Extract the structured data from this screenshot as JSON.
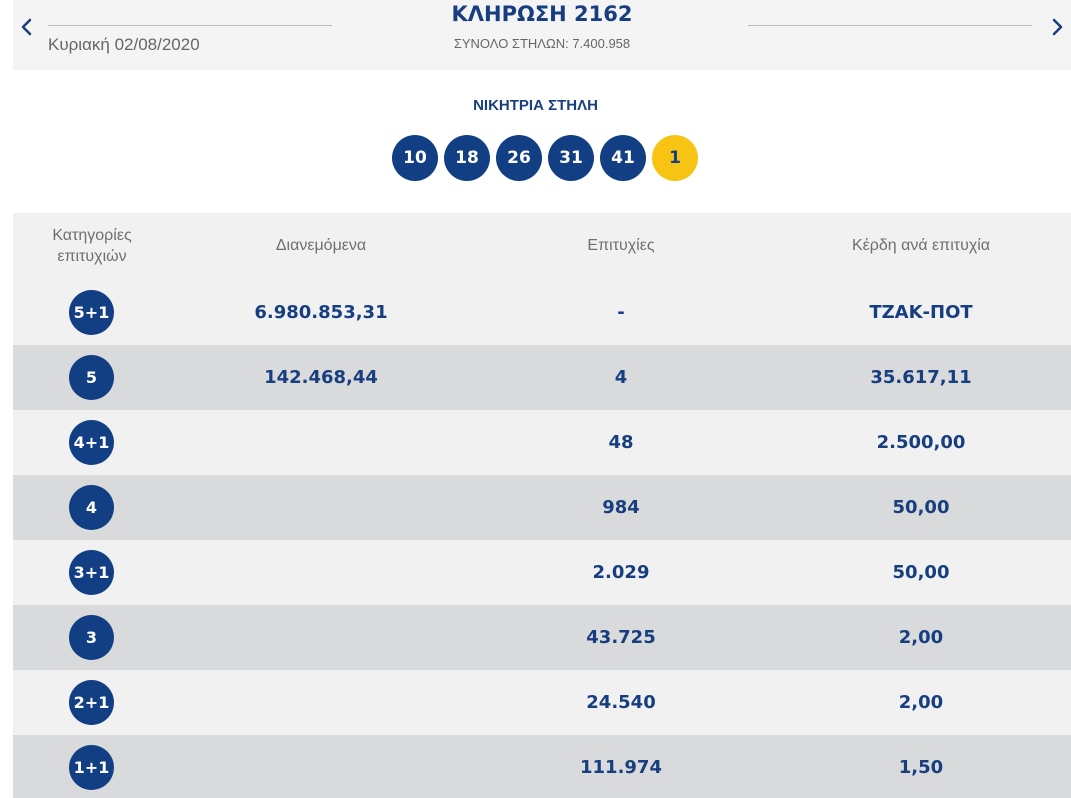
{
  "header": {
    "date": "Κυριακή 02/08/2020",
    "title": "ΚΛΗΡΩΣΗ 2162",
    "total": "ΣΥΝΟΛΟ ΣΤΗΛΩΝ: 7.400.958"
  },
  "winning": {
    "label": "ΝΙΚΗΤΡΙΑ ΣΤΗΛΗ",
    "numbers": [
      "10",
      "18",
      "26",
      "31",
      "41"
    ],
    "joker": "1"
  },
  "table": {
    "headers": {
      "category_line1": "Κατηγορίες",
      "category_line2": "επιτυχιών",
      "distributed": "Διανεμόμενα",
      "winners": "Επιτυχίες",
      "prize": "Κέρδη ανά επιτυχία"
    },
    "rows": [
      {
        "category": "5+1",
        "distributed": "6.980.853,31",
        "winners": "-",
        "prize": "ΤΖΑΚ-ΠΟΤ"
      },
      {
        "category": "5",
        "distributed": "142.468,44",
        "winners": "4",
        "prize": "35.617,11"
      },
      {
        "category": "4+1",
        "distributed": "",
        "winners": "48",
        "prize": "2.500,00"
      },
      {
        "category": "4",
        "distributed": "",
        "winners": "984",
        "prize": "50,00"
      },
      {
        "category": "3+1",
        "distributed": "",
        "winners": "2.029",
        "prize": "50,00"
      },
      {
        "category": "3",
        "distributed": "",
        "winners": "43.725",
        "prize": "2,00"
      },
      {
        "category": "2+1",
        "distributed": "",
        "winners": "24.540",
        "prize": "2,00"
      },
      {
        "category": "1+1",
        "distributed": "",
        "winners": "111.974",
        "prize": "1,50"
      }
    ]
  },
  "icons": {
    "prev": "chevron-left-icon",
    "next": "chevron-right-icon"
  },
  "colors": {
    "primary": "#123e84",
    "joker": "#f8c414",
    "text_dark": "#173e7f",
    "row_light": "#f1f1f1",
    "row_dark": "#d9dadc"
  }
}
